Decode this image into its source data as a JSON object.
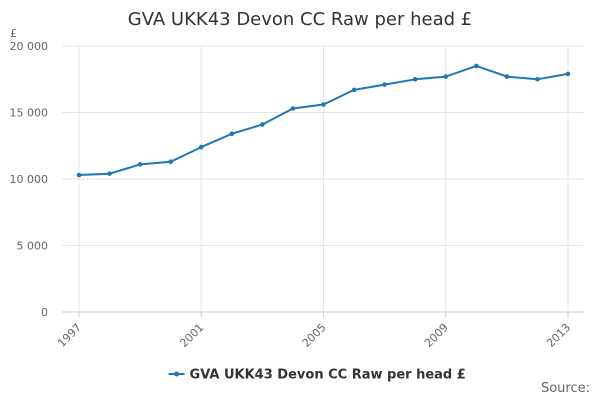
{
  "chart_data": {
    "type": "line",
    "title": "GVA UKK43 Devon CC Raw per head £",
    "ylabel": "£",
    "xlabel": "",
    "x": [
      1997,
      1998,
      1999,
      2000,
      2001,
      2002,
      2003,
      2004,
      2005,
      2006,
      2007,
      2008,
      2009,
      2010,
      2011,
      2012,
      2013
    ],
    "x_tick_labels": [
      "1997",
      "2001",
      "2005",
      "2009",
      "2013"
    ],
    "x_tick_values": [
      1997,
      2001,
      2005,
      2009,
      2013
    ],
    "y_tick_values": [
      0,
      5000,
      10000,
      15000,
      20000
    ],
    "y_tick_labels": [
      "0",
      "5 000",
      "10 000",
      "15 000",
      "20 000"
    ],
    "ylim": [
      0,
      20000
    ],
    "grid": true,
    "legend_position": "bottom",
    "series": [
      {
        "name": "GVA UKK43 Devon CC Raw per head £",
        "color": "#1f77b4",
        "values": [
          10300,
          10400,
          11100,
          11300,
          12400,
          13400,
          14100,
          15300,
          15600,
          16700,
          17100,
          17500,
          17700,
          18500,
          17700,
          17500,
          17900
        ]
      }
    ],
    "source_label": "Source:"
  }
}
